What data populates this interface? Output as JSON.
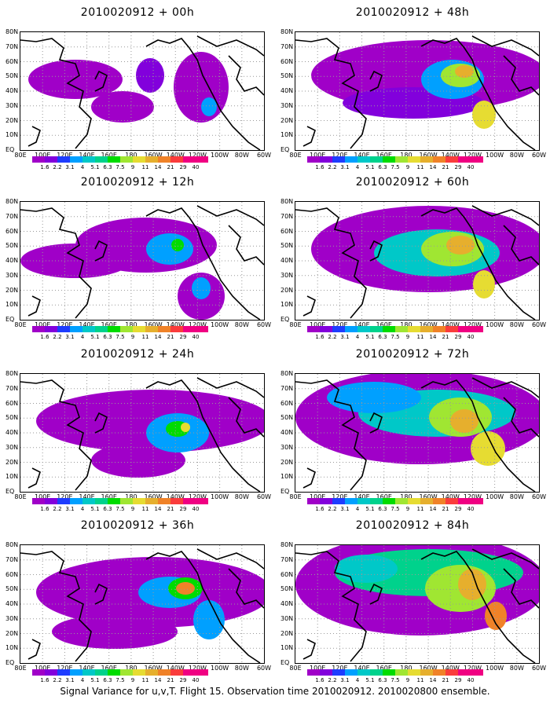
{
  "panels": [
    {
      "title": "2010020912 + 00h"
    },
    {
      "title": "2010020912 + 12h"
    },
    {
      "title": "2010020912 + 24h"
    },
    {
      "title": "2010020912 + 36h"
    },
    {
      "title": "2010020912 + 48h"
    },
    {
      "title": "2010020912 + 60h"
    },
    {
      "title": "2010020912 + 72h"
    },
    {
      "title": "2010020912 + 84h"
    }
  ],
  "lat_labels": [
    "80N",
    "70N",
    "60N",
    "50N",
    "40N",
    "30N",
    "20N",
    "10N",
    "EQ"
  ],
  "lon_labels": [
    "80E",
    "100E",
    "120E",
    "140E",
    "160E",
    "180",
    "160W",
    "140W",
    "120W",
    "100W",
    "80W",
    "60W"
  ],
  "colorbar": {
    "labels": [
      "1.6",
      "2.2",
      "3.1",
      "4",
      "5.1",
      "6.3",
      "7.5",
      "9",
      "11",
      "14",
      "21",
      "29",
      "40"
    ],
    "colors": [
      "#a000c8",
      "#8200dc",
      "#1e3cff",
      "#00a0ff",
      "#00c8c8",
      "#00d28c",
      "#00dc00",
      "#a0e632",
      "#e6dc32",
      "#e6af2d",
      "#f08228",
      "#fa3c3c",
      "#f00082"
    ]
  },
  "caption": "Signal Variance for u,v,T. Flight 15. Observation time 2010020912. 2010020800 ensemble."
}
